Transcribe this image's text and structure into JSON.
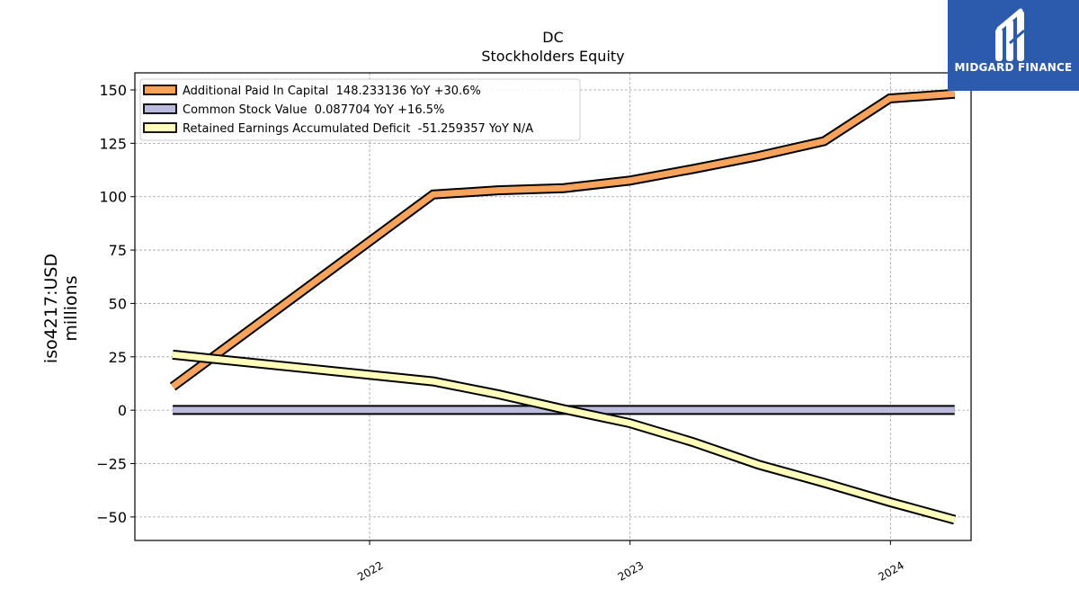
{
  "chart_data": {
    "type": "line",
    "title": "DC",
    "subtitle": "Stockholders  Equity",
    "ylabel": "iso4217:USD",
    "ylabel2": "millions",
    "ylim": [
      -61,
      158
    ],
    "xlim": [
      "2021-02-06",
      "2024-04-23"
    ],
    "yticks": [
      -50,
      -25,
      0,
      25,
      50,
      75,
      100,
      125,
      150
    ],
    "xticks": [
      {
        "date": "2022-01-01",
        "label": "2022"
      },
      {
        "date": "2023-01-01",
        "label": "2023"
      },
      {
        "date": "2024-01-01",
        "label": "2024"
      }
    ],
    "grid": true,
    "legend_position": "top-left",
    "series": [
      {
        "name": "Additional Paid In Capital  148.233136 YoY +30.6%",
        "color": "#f7a35c",
        "points": [
          [
            "2021-03-31",
            11
          ],
          [
            "2022-03-31",
            101
          ],
          [
            "2022-06-30",
            103
          ],
          [
            "2022-09-30",
            104
          ],
          [
            "2022-12-31",
            107.5
          ],
          [
            "2023-03-31",
            113
          ],
          [
            "2023-06-30",
            119
          ],
          [
            "2023-09-30",
            126
          ],
          [
            "2023-12-31",
            146
          ],
          [
            "2024-03-31",
            148.2
          ]
        ]
      },
      {
        "name": "Common Stock Value  0.087704 YoY +16.5%",
        "color": "#bbbbdd",
        "points": [
          [
            "2021-03-31",
            0.09
          ],
          [
            "2024-03-31",
            0.09
          ]
        ]
      },
      {
        "name": "Retained Earnings Accumulated Deficit  -51.259357 YoY N/A",
        "color": "#ffffbb",
        "points": [
          [
            "2021-03-31",
            26
          ],
          [
            "2022-03-31",
            13.5
          ],
          [
            "2022-06-30",
            7.5
          ],
          [
            "2022-09-30",
            0.5
          ],
          [
            "2022-12-31",
            -6
          ],
          [
            "2023-03-31",
            -15
          ],
          [
            "2023-06-30",
            -25.5
          ],
          [
            "2023-09-30",
            -34
          ],
          [
            "2023-12-31",
            -43
          ],
          [
            "2024-03-31",
            -51.3
          ]
        ]
      }
    ]
  },
  "logo": {
    "text": "MIDGARD FINANCE"
  }
}
